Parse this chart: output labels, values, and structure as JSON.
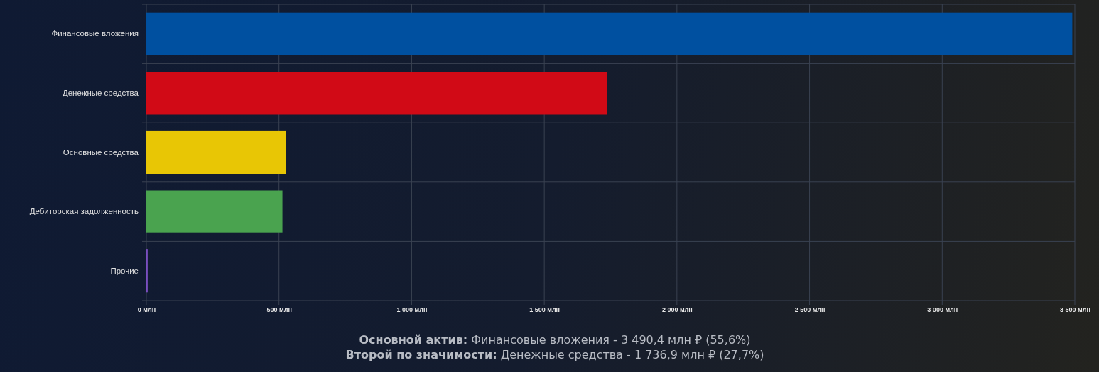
{
  "chart_data": {
    "type": "bar",
    "orientation": "horizontal",
    "categories": [
      "Финансовые вложения",
      "Денежные средства",
      "Основные средства",
      "Дебиторская задолженность",
      "Прочие"
    ],
    "values": [
      3490.4,
      1736.9,
      527,
      513,
      5
    ],
    "colors": [
      "#0050a0",
      "#d10a16",
      "#e8c605",
      "#4aa34f",
      "#7a4fc0"
    ],
    "xlim": [
      0,
      3500
    ],
    "xticks": [
      {
        "value": 0,
        "label": "0 млн"
      },
      {
        "value": 500,
        "label": "500 млн"
      },
      {
        "value": 1000,
        "label": "1 000 млн"
      },
      {
        "value": 1500,
        "label": "1 500 млн"
      },
      {
        "value": 2000,
        "label": "2 000 млн"
      },
      {
        "value": 2500,
        "label": "2 500 млн"
      },
      {
        "value": 3000,
        "label": "3 000 млн"
      },
      {
        "value": 3500,
        "label": "3 500 млн"
      }
    ],
    "grid": true,
    "annotations": [
      "Основной актив: Финансовые вложения - 3 490,4 млн ₽ (55,6%)",
      "Второй по значимости: Денежные средства - 1 736,9 млн ₽ (27,7%)"
    ]
  }
}
